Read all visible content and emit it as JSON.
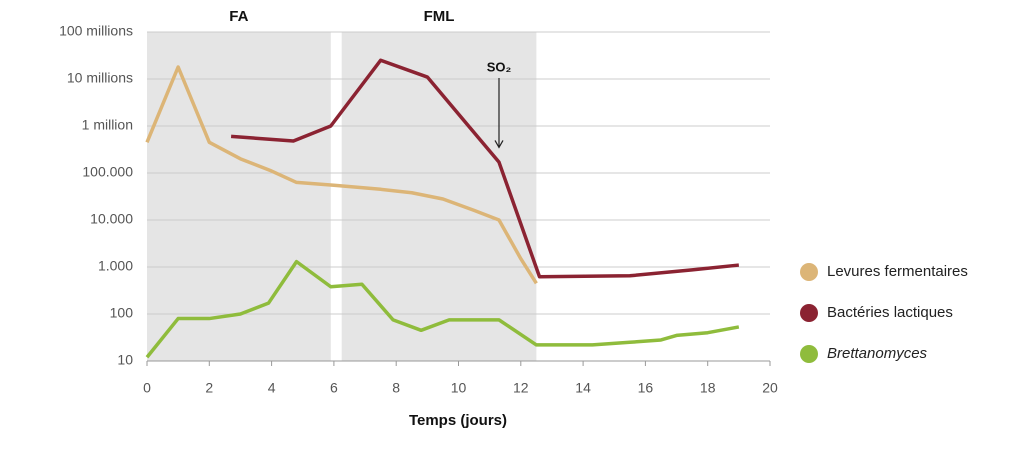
{
  "chart_data": {
    "type": "line",
    "x_label": "Temps (jours)",
    "log_y": true,
    "grid": true,
    "legend_position": "right",
    "xlim": [
      0,
      20
    ],
    "xticks": [
      0,
      2,
      4,
      6,
      8,
      10,
      12,
      14,
      16,
      18,
      20
    ],
    "ylim": [
      10,
      100000000
    ],
    "yticks": [
      10,
      100,
      {
        "value": 1000,
        "label": "1.000"
      },
      {
        "value": 10000,
        "label": "10.000"
      },
      {
        "value": 100000,
        "label": "100.000"
      },
      {
        "value": 1000000,
        "label": "1 million"
      },
      {
        "value": 10000000,
        "label": "10 millions"
      },
      {
        "value": 100000000,
        "label": "100 millions"
      }
    ],
    "bands": [
      {
        "label": "FA",
        "xlim": [
          0,
          5.9
        ],
        "color": "#e5e5e5"
      },
      {
        "label": "FML",
        "xlim": [
          6.25,
          12.5
        ],
        "color": "#e5e5e5"
      }
    ],
    "annotations": [
      {
        "text": "SO₂",
        "x": 11.3,
        "y": 350000
      }
    ],
    "series": [
      {
        "name": "Levures fermentaires",
        "color": "#dcb577",
        "italic": false,
        "x": [
          0,
          1,
          2,
          3,
          4,
          4.8,
          6,
          7.5,
          8.5,
          9.5,
          10.5,
          11.3,
          12,
          12.5
        ],
        "values": [
          450000,
          18000000,
          450000,
          200000,
          110000,
          63000,
          55000,
          45000,
          38000,
          28000,
          16000,
          10000,
          1500,
          450
        ]
      },
      {
        "name": "Bactéries lactiques",
        "color": "#8b2332",
        "italic": false,
        "x": [
          2.7,
          4.7,
          5.9,
          7.5,
          9,
          11.3,
          12.6,
          15.5,
          17.5,
          19
        ],
        "values": [
          600000,
          480000,
          1000000,
          25000000,
          11000000,
          170000,
          620,
          650,
          870,
          1100
        ]
      },
      {
        "name": "Brettanomyces",
        "color": "#8fbc3c",
        "italic": true,
        "x": [
          0,
          1,
          2,
          3,
          3.9,
          4.8,
          5.9,
          6.9,
          7.9,
          8.8,
          9.7,
          11.3,
          12.5,
          14.3,
          15.5,
          16.5,
          17,
          18,
          19
        ],
        "values": [
          12,
          80,
          80,
          100,
          170,
          1300,
          380,
          430,
          75,
          45,
          75,
          75,
          22,
          22,
          25,
          28,
          35,
          40,
          53
        ]
      }
    ]
  }
}
